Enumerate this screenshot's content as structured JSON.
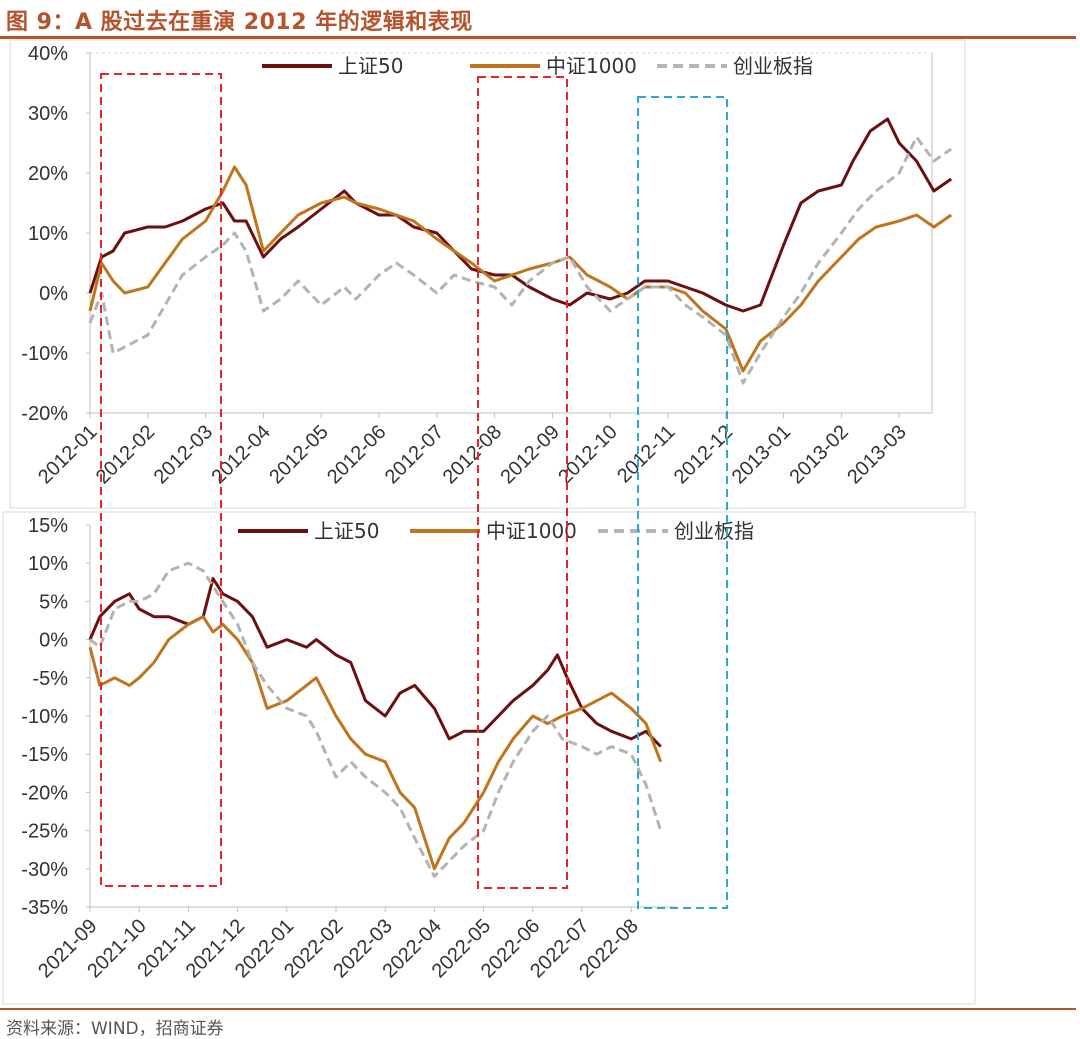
{
  "figure": {
    "title": "图 9：A 股过去在重演 2012 年的逻辑和表现",
    "source": "资料来源：WIND，招商证券"
  },
  "colors": {
    "sz50": "#6b0f0f",
    "zz1000": "#c0741c",
    "cyb": "#b3b3b3",
    "red_box": "#e8242a",
    "blue_box": "#2aa9d8",
    "accent": "#b5542c"
  },
  "chart_data": [
    {
      "type": "line",
      "panel": "top",
      "x": [
        "2012-01",
        "2012-02",
        "2012-03",
        "2012-04",
        "2012-05",
        "2012-06",
        "2012-07",
        "2012-08",
        "2012-09",
        "2012-10",
        "2012-11",
        "2012-12",
        "2013-01",
        "2013-02",
        "2013-03"
      ],
      "y_ticks": [
        "40%",
        "30%",
        "20%",
        "10%",
        "0%",
        "-10%",
        "-20%"
      ],
      "ylim": [
        -20,
        40
      ],
      "legend": [
        "上证50",
        "中证1000",
        "创业板指"
      ],
      "legend_placement": "top",
      "series": [
        {
          "name": "上证50",
          "style": "solid",
          "points": [
            [
              0,
              0
            ],
            [
              0.2,
              6
            ],
            [
              0.4,
              7
            ],
            [
              0.6,
              10
            ],
            [
              1,
              11
            ],
            [
              1.3,
              11
            ],
            [
              1.6,
              12
            ],
            [
              2,
              14
            ],
            [
              2.3,
              15
            ],
            [
              2.5,
              12
            ],
            [
              2.7,
              12
            ],
            [
              3,
              6
            ],
            [
              3.3,
              9
            ],
            [
              3.6,
              11
            ],
            [
              4,
              14
            ],
            [
              4.4,
              17
            ],
            [
              4.6,
              15
            ],
            [
              5,
              13
            ],
            [
              5.3,
              13
            ],
            [
              5.6,
              11
            ],
            [
              6,
              10
            ],
            [
              6.3,
              7
            ],
            [
              6.6,
              4
            ],
            [
              7,
              3
            ],
            [
              7.3,
              3
            ],
            [
              7.6,
              1
            ],
            [
              8,
              -1
            ],
            [
              8.3,
              -2
            ],
            [
              8.6,
              0
            ],
            [
              9,
              -1
            ],
            [
              9.3,
              0
            ],
            [
              9.6,
              2
            ],
            [
              10,
              2
            ],
            [
              10.3,
              1
            ],
            [
              10.6,
              0
            ],
            [
              11,
              -2
            ],
            [
              11.3,
              -3
            ],
            [
              11.6,
              -2
            ],
            [
              12,
              8
            ],
            [
              12.3,
              15
            ],
            [
              12.6,
              17
            ],
            [
              13,
              18
            ],
            [
              13.2,
              22
            ],
            [
              13.5,
              27
            ],
            [
              13.8,
              29
            ],
            [
              14,
              25
            ],
            [
              14.3,
              22
            ],
            [
              14.6,
              17
            ],
            [
              14.9,
              19
            ]
          ]
        },
        {
          "name": "中证1000",
          "style": "solid",
          "points": [
            [
              0,
              -3
            ],
            [
              0.2,
              5
            ],
            [
              0.4,
              2
            ],
            [
              0.6,
              0
            ],
            [
              1,
              1
            ],
            [
              1.3,
              5
            ],
            [
              1.6,
              9
            ],
            [
              2,
              12
            ],
            [
              2.3,
              17
            ],
            [
              2.5,
              21
            ],
            [
              2.7,
              18
            ],
            [
              3,
              7
            ],
            [
              3.3,
              10
            ],
            [
              3.6,
              13
            ],
            [
              4,
              15
            ],
            [
              4.4,
              16
            ],
            [
              4.6,
              15
            ],
            [
              5,
              14
            ],
            [
              5.3,
              13
            ],
            [
              5.6,
              12
            ],
            [
              6,
              9
            ],
            [
              6.3,
              7
            ],
            [
              6.6,
              5
            ],
            [
              7,
              2
            ],
            [
              7.3,
              3
            ],
            [
              7.6,
              4
            ],
            [
              8,
              5
            ],
            [
              8.3,
              6
            ],
            [
              8.6,
              3
            ],
            [
              9,
              1
            ],
            [
              9.3,
              -1
            ],
            [
              9.6,
              1
            ],
            [
              10,
              1
            ],
            [
              10.3,
              0
            ],
            [
              10.6,
              -3
            ],
            [
              11,
              -6
            ],
            [
              11.3,
              -13
            ],
            [
              11.6,
              -8
            ],
            [
              12,
              -5
            ],
            [
              12.3,
              -2
            ],
            [
              12.6,
              2
            ],
            [
              13,
              6
            ],
            [
              13.3,
              9
            ],
            [
              13.6,
              11
            ],
            [
              14,
              12
            ],
            [
              14.3,
              13
            ],
            [
              14.6,
              11
            ],
            [
              14.9,
              13
            ]
          ]
        },
        {
          "name": "创业板指",
          "style": "dashed",
          "points": [
            [
              0,
              -5
            ],
            [
              0.2,
              0
            ],
            [
              0.4,
              -10
            ],
            [
              0.6,
              -9
            ],
            [
              1,
              -7
            ],
            [
              1.3,
              -2
            ],
            [
              1.6,
              3
            ],
            [
              2,
              6
            ],
            [
              2.3,
              8
            ],
            [
              2.5,
              10
            ],
            [
              2.7,
              7
            ],
            [
              3,
              -3
            ],
            [
              3.3,
              -1
            ],
            [
              3.6,
              2
            ],
            [
              4,
              -2
            ],
            [
              4.4,
              1
            ],
            [
              4.6,
              -1
            ],
            [
              5,
              3
            ],
            [
              5.3,
              5
            ],
            [
              5.6,
              3
            ],
            [
              6,
              0
            ],
            [
              6.3,
              3
            ],
            [
              6.6,
              2
            ],
            [
              7,
              1
            ],
            [
              7.3,
              -2
            ],
            [
              7.6,
              2
            ],
            [
              8,
              5
            ],
            [
              8.3,
              6
            ],
            [
              8.6,
              1
            ],
            [
              9,
              -3
            ],
            [
              9.3,
              -1
            ],
            [
              9.6,
              1
            ],
            [
              10,
              1
            ],
            [
              10.3,
              -2
            ],
            [
              10.6,
              -4
            ],
            [
              11,
              -7
            ],
            [
              11.3,
              -15
            ],
            [
              11.6,
              -10
            ],
            [
              12,
              -4
            ],
            [
              12.3,
              0
            ],
            [
              12.6,
              5
            ],
            [
              13,
              10
            ],
            [
              13.3,
              14
            ],
            [
              13.6,
              17
            ],
            [
              14,
              20
            ],
            [
              14.3,
              26
            ],
            [
              14.6,
              22
            ],
            [
              14.9,
              24
            ]
          ]
        }
      ]
    },
    {
      "type": "line",
      "panel": "bottom",
      "x": [
        "2021-09",
        "2021-10",
        "2021-11",
        "2021-12",
        "2022-01",
        "2022-02",
        "2022-03",
        "2022-04",
        "2022-05",
        "2022-06",
        "2022-07",
        "2022-08"
      ],
      "y_ticks": [
        "15%",
        "10%",
        "5%",
        "0%",
        "-5%",
        "-10%",
        "-15%",
        "-20%",
        "-25%",
        "-30%",
        "-35%"
      ],
      "ylim": [
        -35,
        15
      ],
      "legend": [
        "上证50",
        "中证1000",
        "创业板指"
      ],
      "legend_placement": "top",
      "series": [
        {
          "name": "上证50",
          "style": "solid",
          "points": [
            [
              0,
              0
            ],
            [
              0.2,
              3
            ],
            [
              0.5,
              5
            ],
            [
              0.8,
              6
            ],
            [
              1,
              4
            ],
            [
              1.3,
              3
            ],
            [
              1.6,
              3
            ],
            [
              2,
              2
            ],
            [
              2.3,
              3
            ],
            [
              2.5,
              8
            ],
            [
              2.7,
              6
            ],
            [
              3,
              5
            ],
            [
              3.3,
              3
            ],
            [
              3.6,
              -1
            ],
            [
              4,
              0
            ],
            [
              4.4,
              -1
            ],
            [
              4.6,
              0
            ],
            [
              5,
              -2
            ],
            [
              5.3,
              -3
            ],
            [
              5.6,
              -8
            ],
            [
              6,
              -10
            ],
            [
              6.3,
              -7
            ],
            [
              6.6,
              -6
            ],
            [
              7,
              -9
            ],
            [
              7.3,
              -13
            ],
            [
              7.6,
              -12
            ],
            [
              8,
              -12
            ],
            [
              8.3,
              -10
            ],
            [
              8.6,
              -8
            ],
            [
              9,
              -6
            ],
            [
              9.3,
              -4
            ],
            [
              9.5,
              -2
            ],
            [
              9.7,
              -5
            ],
            [
              10,
              -9
            ],
            [
              10.3,
              -11
            ],
            [
              10.6,
              -12
            ],
            [
              11,
              -13
            ],
            [
              11.3,
              -12
            ],
            [
              11.6,
              -14
            ]
          ]
        },
        {
          "name": "中证1000",
          "style": "solid",
          "points": [
            [
              0,
              -1
            ],
            [
              0.2,
              -6
            ],
            [
              0.5,
              -5
            ],
            [
              0.8,
              -6
            ],
            [
              1,
              -5
            ],
            [
              1.3,
              -3
            ],
            [
              1.6,
              0
            ],
            [
              2,
              2
            ],
            [
              2.3,
              3
            ],
            [
              2.5,
              1
            ],
            [
              2.7,
              2
            ],
            [
              3,
              0
            ],
            [
              3.3,
              -3
            ],
            [
              3.6,
              -9
            ],
            [
              4,
              -8
            ],
            [
              4.4,
              -6
            ],
            [
              4.6,
              -5
            ],
            [
              5,
              -10
            ],
            [
              5.3,
              -13
            ],
            [
              5.6,
              -15
            ],
            [
              6,
              -16
            ],
            [
              6.3,
              -20
            ],
            [
              6.6,
              -22
            ],
            [
              7,
              -30
            ],
            [
              7.3,
              -26
            ],
            [
              7.6,
              -24
            ],
            [
              8,
              -20
            ],
            [
              8.3,
              -16
            ],
            [
              8.6,
              -13
            ],
            [
              9,
              -10
            ],
            [
              9.3,
              -11
            ],
            [
              9.6,
              -10
            ],
            [
              10,
              -9
            ],
            [
              10.3,
              -8
            ],
            [
              10.6,
              -7
            ],
            [
              11,
              -9
            ],
            [
              11.3,
              -11
            ],
            [
              11.6,
              -16
            ]
          ]
        },
        {
          "name": "创业板指",
          "style": "dashed",
          "points": [
            [
              0,
              0
            ],
            [
              0.2,
              -1
            ],
            [
              0.5,
              4
            ],
            [
              0.8,
              5
            ],
            [
              1,
              5
            ],
            [
              1.3,
              6
            ],
            [
              1.6,
              9
            ],
            [
              2,
              10
            ],
            [
              2.3,
              9
            ],
            [
              2.5,
              7
            ],
            [
              2.7,
              5
            ],
            [
              3,
              2
            ],
            [
              3.3,
              -3
            ],
            [
              3.6,
              -6
            ],
            [
              4,
              -9
            ],
            [
              4.4,
              -10
            ],
            [
              4.6,
              -12
            ],
            [
              5,
              -18
            ],
            [
              5.3,
              -16
            ],
            [
              5.6,
              -18
            ],
            [
              6,
              -20
            ],
            [
              6.3,
              -22
            ],
            [
              6.6,
              -26
            ],
            [
              7,
              -31
            ],
            [
              7.3,
              -29
            ],
            [
              7.6,
              -27
            ],
            [
              8,
              -25
            ],
            [
              8.3,
              -20
            ],
            [
              8.6,
              -16
            ],
            [
              9,
              -12
            ],
            [
              9.3,
              -10
            ],
            [
              9.6,
              -13
            ],
            [
              10,
              -14
            ],
            [
              10.3,
              -15
            ],
            [
              10.6,
              -14
            ],
            [
              11,
              -15
            ],
            [
              11.3,
              -19
            ],
            [
              11.6,
              -25
            ]
          ]
        }
      ]
    }
  ]
}
